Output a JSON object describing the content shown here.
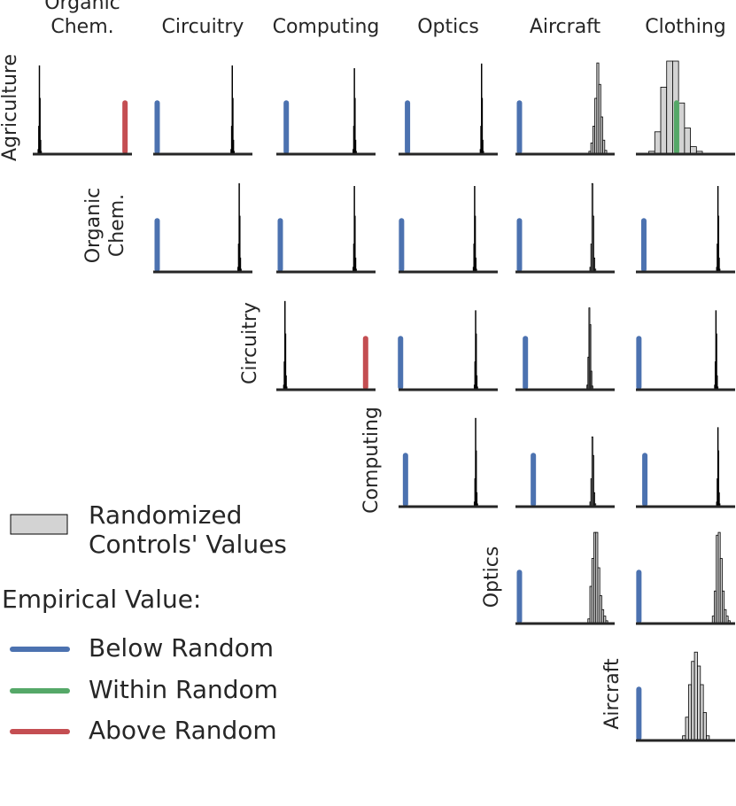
{
  "chart_data": {
    "type": "histogram",
    "columns": [
      [
        "Organic",
        "Chem."
      ],
      [
        "Circuitry"
      ],
      [
        "Computing"
      ],
      [
        "Optics"
      ],
      [
        "Aircraft"
      ],
      [
        "Clothing"
      ]
    ],
    "rows": [
      [
        "Agriculture"
      ],
      [
        "Organic",
        "Chem."
      ],
      [
        "Circuitry"
      ],
      [
        "Computing"
      ],
      [
        "Optics"
      ],
      [
        "Aircraft"
      ]
    ],
    "xlim": [
      0,
      100
    ],
    "ylim": [
      0,
      100
    ],
    "empirical_height": 55,
    "hist_color": "#d3d3d3",
    "legend": {
      "hist_label": [
        "Randomized",
        "Controls' Values"
      ],
      "empirical_title": "Empirical Value:",
      "entries": [
        {
          "name": "Below Random",
          "color": "#4c72b0"
        },
        {
          "name": "Within Random",
          "color": "#55a868"
        },
        {
          "name": "Above Random",
          "color": "#c44e52"
        }
      ]
    },
    "cells": [
      {
        "row": 0,
        "col": 0,
        "empirical": 93,
        "status": 2,
        "bins": [
          5.2,
          5.8,
          6.4,
          7,
          7.6,
          8.2,
          8.8
        ],
        "counts": [
          5,
          30,
          95,
          60,
          15,
          3
        ]
      },
      {
        "row": 0,
        "col": 1,
        "empirical": 4,
        "status": 0,
        "bins": [
          78.2,
          78.8,
          79.4,
          80,
          80.6,
          81.2,
          81.8
        ],
        "counts": [
          5,
          30,
          95,
          60,
          15,
          3
        ]
      },
      {
        "row": 0,
        "col": 2,
        "empirical": 10,
        "status": 0,
        "bins": [
          77.2,
          77.8,
          78.4,
          79,
          79.6,
          80.2,
          80.8
        ],
        "counts": [
          5,
          30,
          92,
          60,
          15,
          3
        ]
      },
      {
        "row": 0,
        "col": 3,
        "empirical": 9,
        "status": 0,
        "bins": [
          82.2,
          82.8,
          83.4,
          84,
          84.6,
          85.2,
          85.8
        ],
        "counts": [
          5,
          30,
          97,
          60,
          15,
          3
        ]
      },
      {
        "row": 0,
        "col": 4,
        "empirical": 4,
        "status": 0,
        "bins": [
          74,
          76,
          78,
          80,
          82,
          84,
          86,
          88,
          90,
          92
        ],
        "counts": [
          3,
          12,
          30,
          60,
          98,
          75,
          40,
          15,
          4
        ]
      },
      {
        "row": 0,
        "col": 5,
        "empirical": 41,
        "status": 1,
        "bins": [
          13,
          19,
          25,
          31,
          37,
          43,
          49,
          55,
          61,
          67,
          73
        ],
        "counts": [
          3,
          24,
          72,
          100,
          100,
          55,
          28,
          8,
          3,
          1
        ]
      },
      {
        "row": 1,
        "col": 1,
        "empirical": 4,
        "status": 0,
        "bins": [
          85.2,
          85.8,
          86.4,
          87,
          87.6,
          88.2,
          88.8
        ],
        "counts": [
          5,
          30,
          95,
          60,
          15,
          3
        ]
      },
      {
        "row": 1,
        "col": 2,
        "empirical": 4,
        "status": 0,
        "bins": [
          77.2,
          77.8,
          78.4,
          79,
          79.6,
          80.2,
          80.8
        ],
        "counts": [
          5,
          30,
          92,
          60,
          15,
          3
        ]
      },
      {
        "row": 1,
        "col": 3,
        "empirical": 3,
        "status": 0,
        "bins": [
          75.2,
          75.8,
          76.4,
          77,
          77.6,
          78.2,
          78.8
        ],
        "counts": [
          5,
          30,
          92,
          60,
          15,
          3
        ]
      },
      {
        "row": 1,
        "col": 4,
        "empirical": 4,
        "status": 0,
        "bins": [
          75,
          76,
          77,
          78,
          79,
          80,
          81
        ],
        "counts": [
          5,
          30,
          95,
          60,
          15,
          3
        ]
      },
      {
        "row": 1,
        "col": 5,
        "empirical": 8,
        "status": 0,
        "bins": [
          81.2,
          81.8,
          82.4,
          83,
          83.6,
          84.2,
          84.8
        ],
        "counts": [
          5,
          30,
          92,
          60,
          15,
          3
        ]
      },
      {
        "row": 2,
        "col": 2,
        "empirical": 90,
        "status": 2,
        "bins": [
          7.2,
          7.8,
          8.4,
          9,
          9.6,
          10.2,
          10.8
        ],
        "counts": [
          5,
          30,
          95,
          60,
          15,
          3
        ]
      },
      {
        "row": 2,
        "col": 3,
        "empirical": 2,
        "status": 0,
        "bins": [
          76.2,
          76.8,
          77.4,
          78,
          78.6,
          79.2,
          79.8
        ],
        "counts": [
          5,
          30,
          85,
          60,
          15,
          3
        ]
      },
      {
        "row": 2,
        "col": 4,
        "empirical": 10,
        "status": 0,
        "bins": [
          72,
          73,
          74,
          75,
          76,
          77,
          78
        ],
        "counts": [
          5,
          35,
          88,
          70,
          20,
          4
        ]
      },
      {
        "row": 2,
        "col": 5,
        "empirical": 3,
        "status": 0,
        "bins": [
          79.2,
          79.8,
          80.4,
          81,
          81.6,
          82.2,
          82.8
        ],
        "counts": [
          5,
          30,
          85,
          60,
          15,
          3
        ]
      },
      {
        "row": 3,
        "col": 3,
        "empirical": 7,
        "status": 0,
        "bins": [
          76.2,
          76.8,
          77.4,
          78,
          78.6,
          79.2,
          79.8
        ],
        "counts": [
          5,
          30,
          95,
          60,
          15,
          3
        ]
      },
      {
        "row": 3,
        "col": 4,
        "empirical": 18,
        "status": 0,
        "bins": [
          75,
          76,
          77,
          78,
          79,
          80,
          81
        ],
        "counts": [
          5,
          30,
          75,
          55,
          15,
          3
        ]
      },
      {
        "row": 3,
        "col": 5,
        "empirical": 9,
        "status": 0,
        "bins": [
          81.2,
          81.8,
          82.4,
          83,
          83.6,
          84.2,
          84.8
        ],
        "counts": [
          5,
          30,
          85,
          60,
          15,
          3
        ]
      },
      {
        "row": 4,
        "col": 4,
        "empirical": 4,
        "status": 0,
        "bins": [
          73,
          75,
          77,
          79,
          81,
          83,
          85,
          87,
          89,
          91,
          93
        ],
        "counts": [
          5,
          40,
          70,
          98,
          98,
          60,
          30,
          15,
          8,
          3
        ]
      },
      {
        "row": 4,
        "col": 5,
        "empirical": 3,
        "status": 0,
        "bins": [
          77,
          79,
          81,
          83,
          85,
          87,
          89,
          91,
          93,
          95
        ],
        "counts": [
          8,
          35,
          95,
          98,
          70,
          35,
          15,
          8,
          3
        ]
      },
      {
        "row": 5,
        "col": 5,
        "empirical": 3,
        "status": 0,
        "bins": [
          47,
          50,
          53,
          56,
          59,
          62,
          65,
          68,
          71,
          74
        ],
        "counts": [
          5,
          25,
          60,
          85,
          95,
          80,
          60,
          30,
          5
        ]
      }
    ]
  }
}
